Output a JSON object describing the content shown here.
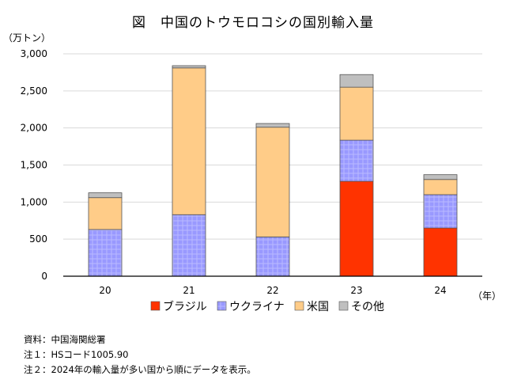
{
  "title": "図　中国のトウモロコシの国別輸入量",
  "chart_data": {
    "type": "bar",
    "stacked": true,
    "title": "図　中国のトウモロコシの国別輸入量",
    "ylabel": "（万トン）",
    "xlabel": "（年）",
    "categories": [
      "20",
      "21",
      "22",
      "23",
      "24"
    ],
    "ylim": [
      0,
      3000
    ],
    "yticks": [
      0,
      500,
      1000,
      1500,
      2000,
      2500,
      3000
    ],
    "ytick_labels": [
      "0",
      "500",
      "1,000",
      "1,500",
      "2,000",
      "2,500",
      "3,000"
    ],
    "grid": true,
    "legend_position": "bottom",
    "series": [
      {
        "name": "ブラジル",
        "color": "#ff3300",
        "values": [
          0,
          0,
          0,
          1280,
          650
        ]
      },
      {
        "name": "ウクライナ",
        "color": "#9999ff",
        "values": [
          630,
          830,
          530,
          555,
          450
        ]
      },
      {
        "name": "米国",
        "color": "#ffcc88",
        "values": [
          430,
          1980,
          1480,
          715,
          205
        ]
      },
      {
        "name": "その他",
        "color": "#bfbfbf",
        "values": [
          65,
          30,
          50,
          170,
          65
        ]
      }
    ]
  },
  "notes": [
    "資料：中国海関総署",
    "注１：HSコード1005.90",
    "注２：2024年の輸入量が多い国から順にデータを表示。"
  ]
}
